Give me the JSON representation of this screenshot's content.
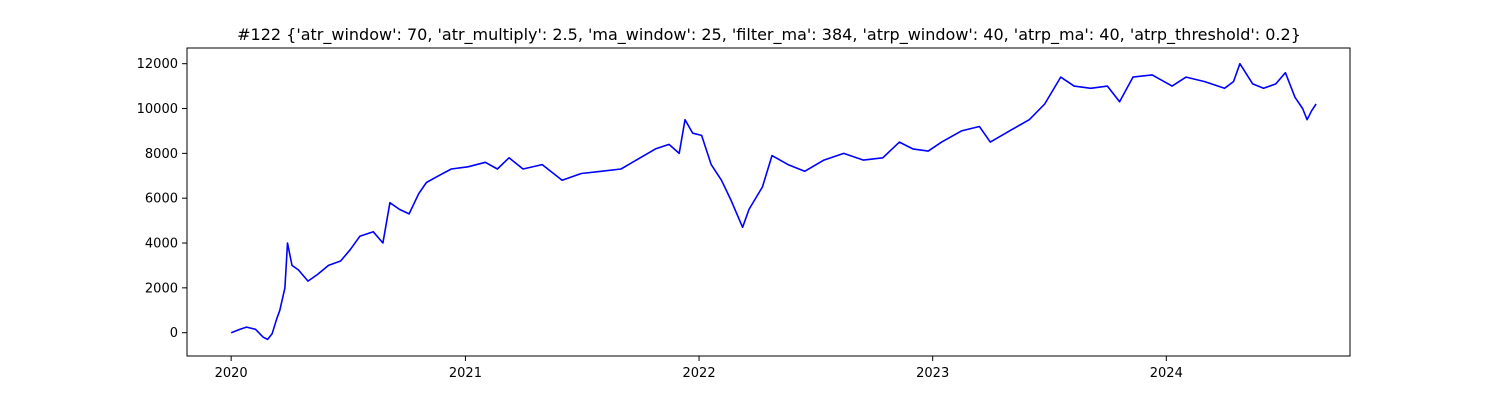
{
  "chart_data": {
    "type": "line",
    "title": "#122 {'atr_window': 70, 'atr_multiply': 2.5, 'ma_window': 25, 'filter_ma': 384, 'atrp_window': 40, 'atrp_ma': 40, 'atrp_threshold': 0.2}",
    "xlabel": "",
    "ylabel": "",
    "xlim": [
      "2019-10-24",
      "2024-10-14"
    ],
    "ylim": [
      -1040,
      12700
    ],
    "x_ticks": [
      "2020-01-01",
      "2021-01-01",
      "2022-01-01",
      "2023-01-01",
      "2024-01-01"
    ],
    "x_tick_labels": [
      "2020",
      "2021",
      "2022",
      "2023",
      "2024"
    ],
    "y_ticks": [
      0,
      2000,
      4000,
      6000,
      8000,
      10000,
      12000
    ],
    "y_tick_labels": [
      "0",
      "2000",
      "4000",
      "6000",
      "8000",
      "10000",
      "12000"
    ],
    "grid": false,
    "colors": {
      "line": "#0000ff",
      "axes": "#000000",
      "background": "#ffffff"
    },
    "series": [
      {
        "color": "#0000ff",
        "x": [
          "2020-01-01",
          "2020-01-15",
          "2020-01-25",
          "2020-02-08",
          "2020-02-20",
          "2020-02-27",
          "2020-03-05",
          "2020-03-12",
          "2020-03-17",
          "2020-03-25",
          "2020-03-29",
          "2020-04-05",
          "2020-04-15",
          "2020-04-30",
          "2020-05-15",
          "2020-06-01",
          "2020-06-20",
          "2020-07-05",
          "2020-07-20",
          "2020-08-10",
          "2020-08-25",
          "2020-09-05",
          "2020-09-20",
          "2020-10-05",
          "2020-10-20",
          "2020-11-01",
          "2020-11-20",
          "2020-12-10",
          "2021-01-05",
          "2021-02-01",
          "2021-02-20",
          "2021-03-10",
          "2021-04-01",
          "2021-05-01",
          "2021-06-01",
          "2021-07-01",
          "2021-08-01",
          "2021-09-01",
          "2021-10-01",
          "2021-10-25",
          "2021-11-15",
          "2021-12-01",
          "2021-12-10",
          "2021-12-22",
          "2022-01-05",
          "2022-01-20",
          "2022-02-05",
          "2022-02-20",
          "2022-03-10",
          "2022-03-20",
          "2022-04-10",
          "2022-04-25",
          "2022-05-20",
          "2022-06-15",
          "2022-07-15",
          "2022-08-15",
          "2022-09-15",
          "2022-10-15",
          "2022-11-10",
          "2022-12-01",
          "2022-12-25",
          "2023-01-15",
          "2023-02-15",
          "2023-03-15",
          "2023-04-01",
          "2023-05-01",
          "2023-06-01",
          "2023-06-25",
          "2023-07-20",
          "2023-08-10",
          "2023-09-05",
          "2023-10-01",
          "2023-10-20",
          "2023-11-10",
          "2023-12-10",
          "2024-01-10",
          "2024-02-01",
          "2024-03-01",
          "2024-04-01",
          "2024-04-15",
          "2024-04-25",
          "2024-05-15",
          "2024-06-01",
          "2024-06-20",
          "2024-07-05",
          "2024-07-20",
          "2024-08-01",
          "2024-08-08",
          "2024-08-15",
          "2024-08-22"
        ],
        "y": [
          0,
          150,
          250,
          150,
          -200,
          -300,
          -50,
          600,
          1000,
          2000,
          4000,
          3000,
          2800,
          2300,
          2600,
          3000,
          3200,
          3700,
          4300,
          4500,
          4000,
          5800,
          5500,
          5300,
          6200,
          6700,
          7000,
          7300,
          7400,
          7600,
          7300,
          7800,
          7300,
          7500,
          6800,
          7100,
          7200,
          7300,
          7800,
          8200,
          8400,
          8000,
          9500,
          8900,
          8800,
          7500,
          6800,
          5900,
          4700,
          5500,
          6500,
          7900,
          7500,
          7200,
          7700,
          8000,
          7700,
          7800,
          8500,
          8200,
          8100,
          8500,
          9000,
          9200,
          8500,
          9000,
          9500,
          10200,
          11400,
          11000,
          10900,
          11000,
          10300,
          11400,
          11500,
          11000,
          11400,
          11200,
          10900,
          11200,
          12000,
          11100,
          10900,
          11100,
          11600,
          10500,
          10000,
          9500,
          9900,
          10200
        ]
      }
    ]
  }
}
